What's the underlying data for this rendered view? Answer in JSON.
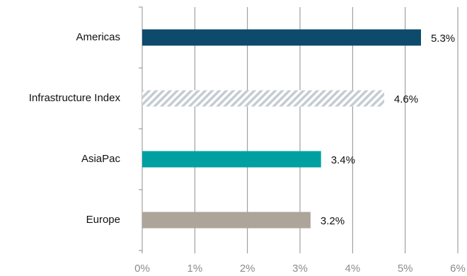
{
  "chart_data": {
    "type": "bar",
    "orientation": "horizontal",
    "categories": [
      "Americas",
      "Infrastructure Index",
      "AsiaPac",
      "Europe"
    ],
    "values": [
      5.3,
      4.6,
      3.4,
      3.2
    ],
    "value_labels": [
      "5.3%",
      "4.6%",
      "3.4%",
      "3.2%"
    ],
    "bar_colors": [
      "#0d4a6b",
      "hatched-gray",
      "#00a0a0",
      "#ada59a"
    ],
    "hatch_colors": {
      "stripe": "#c4ccd3",
      "background": "#ffffff"
    },
    "xlim": [
      0,
      6
    ],
    "xticks": [
      0,
      1,
      2,
      3,
      4,
      5,
      6
    ],
    "xtick_labels": [
      "0%",
      "1%",
      "2%",
      "3%",
      "4%",
      "5%",
      "6%"
    ],
    "grid": "vertical",
    "legend": "none",
    "title": "",
    "xlabel": "",
    "ylabel": ""
  }
}
